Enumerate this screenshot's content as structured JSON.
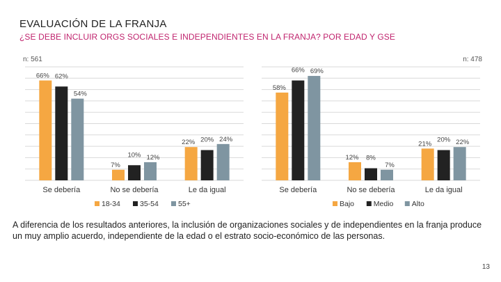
{
  "page": {
    "title": "EVALUACIÓN DE LA FRANJA",
    "subtitle": "¿SE DEBE INCLUIR ORGS SOCIALES E INDEPENDIENTES EN LA FRANJA? POR EDAD Y GSE",
    "paragraph": "A diferencia de los resultados anteriores, la inclusión de organizaciones sociales y de independientes en la franja produce un muy amplio acuerdo, independiente de la edad o el estrato socio-económico de las personas.",
    "page_number": "13"
  },
  "chart_data": [
    {
      "type": "bar",
      "n_label": "n: 561",
      "categories": [
        "Se debería",
        "No se debería",
        "Le da igual"
      ],
      "series": [
        {
          "name": "18-34",
          "values": [
            66,
            7,
            22
          ],
          "color": "#f5a742"
        },
        {
          "name": "35-54",
          "values": [
            62,
            10,
            20
          ],
          "color": "#222222"
        },
        {
          "name": "55+",
          "values": [
            54,
            12,
            24
          ],
          "color": "#7f95a1"
        }
      ],
      "value_labels": [
        [
          "66%",
          "7%",
          "22%"
        ],
        [
          "62%",
          "10%",
          "20%"
        ],
        [
          "54%",
          "12%",
          "24%"
        ]
      ],
      "ylim": [
        0,
        75
      ],
      "grid": true,
      "legend": "bottom"
    },
    {
      "type": "bar",
      "n_label": "n: 478",
      "categories": [
        "Se debería",
        "No se debería",
        "Le da igual"
      ],
      "series": [
        {
          "name": "Bajo",
          "values": [
            58,
            12,
            21
          ],
          "color": "#f5a742"
        },
        {
          "name": "Medio",
          "values": [
            66,
            8,
            20
          ],
          "color": "#222222"
        },
        {
          "name": "Alto",
          "values": [
            69,
            7,
            22
          ],
          "color": "#7f95a1"
        }
      ],
      "value_labels": [
        [
          "58%",
          "12%",
          "21%"
        ],
        [
          "66%",
          "8%",
          "20%"
        ],
        [
          "69%",
          "7%",
          "22%"
        ]
      ],
      "ylim": [
        0,
        75
      ],
      "grid": true,
      "legend": "bottom"
    }
  ]
}
